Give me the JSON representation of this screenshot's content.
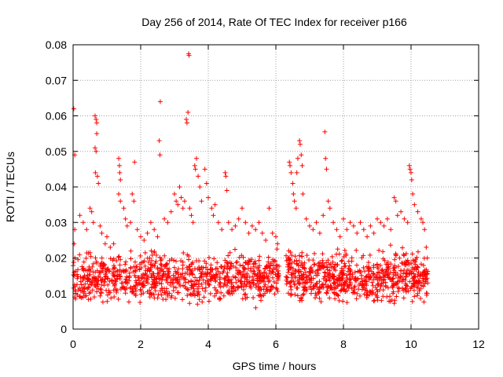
{
  "chart_data": {
    "type": "scatter",
    "title": "Day 256 of 2014, Rate Of TEC Index for receiver p166",
    "xlabel": "GPS time / hours",
    "ylabel": "ROTI / TECUs",
    "xlim": [
      0,
      12
    ],
    "ylim": [
      0,
      0.08
    ],
    "x_ticks": [
      0,
      2,
      4,
      6,
      8,
      10,
      12
    ],
    "x_tick_labels": [
      "0",
      "2",
      "4",
      "6",
      "8",
      "10",
      "12"
    ],
    "y_ticks": [
      0,
      0.01,
      0.02,
      0.03,
      0.04,
      0.05,
      0.06,
      0.07,
      0.08
    ],
    "y_tick_labels": [
      "0",
      "0.01",
      "0.02",
      "0.03",
      "0.04",
      "0.05",
      "0.06",
      "0.07",
      "0.08"
    ],
    "grid": true,
    "marker": "plus",
    "colors": {
      "points": "#ff0000",
      "grid": "#a0a0a0",
      "axes": "#000000"
    },
    "dense_bands": [
      {
        "x_start": 0.0,
        "x_end": 6.1,
        "y_min": 0.005,
        "y_max": 0.024,
        "sample_count": 900
      },
      {
        "x_start": 6.3,
        "x_end": 10.5,
        "y_min": 0.005,
        "y_max": 0.024,
        "sample_count": 700
      }
    ],
    "points": [
      [
        0.02,
        0.062
      ],
      [
        0.05,
        0.049
      ],
      [
        0.05,
        0.028
      ],
      [
        0.03,
        0.024
      ],
      [
        0.04,
        0.015
      ],
      [
        0.06,
        0.011
      ],
      [
        0.05,
        0.009
      ],
      [
        0.2,
        0.032
      ],
      [
        0.3,
        0.03
      ],
      [
        0.4,
        0.028
      ],
      [
        0.5,
        0.034
      ],
      [
        0.55,
        0.033
      ],
      [
        0.6,
        0.03
      ],
      [
        0.65,
        0.06
      ],
      [
        0.68,
        0.059
      ],
      [
        0.7,
        0.058
      ],
      [
        0.7,
        0.055
      ],
      [
        0.65,
        0.051
      ],
      [
        0.68,
        0.05
      ],
      [
        0.66,
        0.044
      ],
      [
        0.72,
        0.043
      ],
      [
        0.75,
        0.041
      ],
      [
        0.8,
        0.029
      ],
      [
        0.85,
        0.027
      ],
      [
        0.95,
        0.024
      ],
      [
        1.0,
        0.026
      ],
      [
        1.1,
        0.023
      ],
      [
        1.2,
        0.024
      ],
      [
        1.35,
        0.048
      ],
      [
        1.37,
        0.046
      ],
      [
        1.38,
        0.044
      ],
      [
        1.4,
        0.042
      ],
      [
        1.35,
        0.038
      ],
      [
        1.4,
        0.036
      ],
      [
        1.5,
        0.034
      ],
      [
        1.55,
        0.031
      ],
      [
        1.6,
        0.029
      ],
      [
        1.7,
        0.03
      ],
      [
        1.75,
        0.038
      ],
      [
        1.8,
        0.036
      ],
      [
        1.82,
        0.047
      ],
      [
        1.9,
        0.028
      ],
      [
        2.0,
        0.026
      ],
      [
        2.1,
        0.025
      ],
      [
        2.2,
        0.027
      ],
      [
        2.3,
        0.03
      ],
      [
        2.4,
        0.028
      ],
      [
        2.5,
        0.026
      ],
      [
        2.58,
        0.064
      ],
      [
        2.55,
        0.053
      ],
      [
        2.57,
        0.049
      ],
      [
        2.7,
        0.031
      ],
      [
        2.8,
        0.03
      ],
      [
        2.9,
        0.033
      ],
      [
        3.0,
        0.038
      ],
      [
        3.05,
        0.036
      ],
      [
        3.1,
        0.035
      ],
      [
        3.15,
        0.04
      ],
      [
        3.2,
        0.037
      ],
      [
        3.25,
        0.034
      ],
      [
        3.3,
        0.036
      ],
      [
        3.35,
        0.059
      ],
      [
        3.37,
        0.058
      ],
      [
        3.4,
        0.061
      ],
      [
        3.42,
        0.0775
      ],
      [
        3.43,
        0.077
      ],
      [
        3.45,
        0.034
      ],
      [
        3.5,
        0.032
      ],
      [
        3.55,
        0.03
      ],
      [
        3.6,
        0.046
      ],
      [
        3.62,
        0.045
      ],
      [
        3.65,
        0.048
      ],
      [
        3.7,
        0.043
      ],
      [
        3.75,
        0.04
      ],
      [
        3.8,
        0.036
      ],
      [
        3.9,
        0.045
      ],
      [
        3.95,
        0.041
      ],
      [
        4.0,
        0.037
      ],
      [
        4.1,
        0.034
      ],
      [
        4.15,
        0.032
      ],
      [
        4.2,
        0.035
      ],
      [
        4.3,
        0.03
      ],
      [
        4.4,
        0.028
      ],
      [
        4.5,
        0.044
      ],
      [
        4.52,
        0.043
      ],
      [
        4.55,
        0.039
      ],
      [
        4.6,
        0.03
      ],
      [
        4.7,
        0.028
      ],
      [
        4.8,
        0.029
      ],
      [
        4.9,
        0.031
      ],
      [
        5.0,
        0.034
      ],
      [
        5.1,
        0.03
      ],
      [
        5.2,
        0.027
      ],
      [
        5.3,
        0.029
      ],
      [
        5.4,
        0.028
      ],
      [
        5.5,
        0.03
      ],
      [
        5.6,
        0.027
      ],
      [
        5.7,
        0.025
      ],
      [
        5.8,
        0.034
      ],
      [
        5.9,
        0.027
      ],
      [
        6.0,
        0.026
      ],
      [
        6.05,
        0.024
      ],
      [
        6.4,
        0.047
      ],
      [
        6.42,
        0.046
      ],
      [
        6.45,
        0.044
      ],
      [
        6.5,
        0.041
      ],
      [
        6.52,
        0.038
      ],
      [
        6.55,
        0.036
      ],
      [
        6.6,
        0.034
      ],
      [
        6.62,
        0.044
      ],
      [
        6.65,
        0.048
      ],
      [
        6.7,
        0.053
      ],
      [
        6.72,
        0.052
      ],
      [
        6.75,
        0.049
      ],
      [
        6.78,
        0.046
      ],
      [
        6.8,
        0.038
      ],
      [
        6.9,
        0.031
      ],
      [
        7.0,
        0.029
      ],
      [
        7.1,
        0.028
      ],
      [
        7.2,
        0.03
      ],
      [
        7.3,
        0.027
      ],
      [
        7.4,
        0.032
      ],
      [
        7.45,
        0.0555
      ],
      [
        7.47,
        0.048
      ],
      [
        7.5,
        0.045
      ],
      [
        7.55,
        0.036
      ],
      [
        7.6,
        0.034
      ],
      [
        7.7,
        0.03
      ],
      [
        7.8,
        0.028
      ],
      [
        7.9,
        0.026
      ],
      [
        8.0,
        0.031
      ],
      [
        8.1,
        0.028
      ],
      [
        8.2,
        0.03
      ],
      [
        8.3,
        0.029
      ],
      [
        8.4,
        0.027
      ],
      [
        8.5,
        0.03
      ],
      [
        8.6,
        0.028
      ],
      [
        8.7,
        0.026
      ],
      [
        8.8,
        0.029
      ],
      [
        8.9,
        0.027
      ],
      [
        9.0,
        0.031
      ],
      [
        9.1,
        0.03
      ],
      [
        9.2,
        0.029
      ],
      [
        9.3,
        0.031
      ],
      [
        9.4,
        0.028
      ],
      [
        9.5,
        0.037
      ],
      [
        9.55,
        0.036
      ],
      [
        9.6,
        0.032
      ],
      [
        9.7,
        0.033
      ],
      [
        9.8,
        0.031
      ],
      [
        9.9,
        0.03
      ],
      [
        9.95,
        0.046
      ],
      [
        9.97,
        0.045
      ],
      [
        10.0,
        0.044
      ],
      [
        10.02,
        0.042
      ],
      [
        10.05,
        0.038
      ],
      [
        10.1,
        0.035
      ],
      [
        10.2,
        0.033
      ],
      [
        10.3,
        0.031
      ],
      [
        10.35,
        0.03
      ],
      [
        10.4,
        0.028
      ],
      [
        10.45,
        0.023
      ],
      [
        10.48,
        0.02
      ]
    ]
  }
}
